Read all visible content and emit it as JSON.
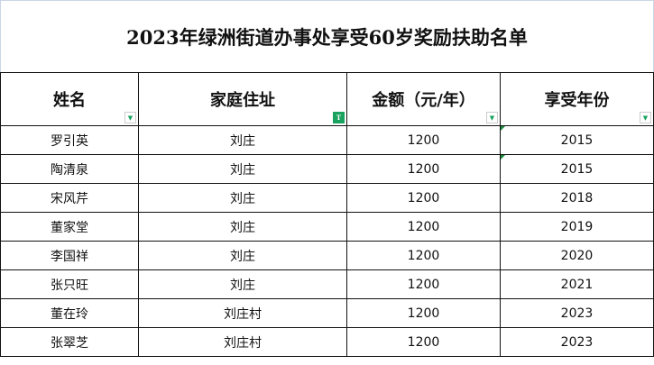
{
  "title": "2023年绿洲街道办事处享受60岁奖励扶助名单",
  "columns": [
    {
      "label": "姓名",
      "filter_icon": "dropdown-arrow-icon",
      "filtered": false
    },
    {
      "label": "家庭住址",
      "filter_icon": "filter-active-icon",
      "filtered": true
    },
    {
      "label": "金额（元/年）",
      "filter_icon": "dropdown-arrow-icon",
      "filtered": false
    },
    {
      "label": "享受年份",
      "filter_icon": "dropdown-arrow-icon",
      "filtered": false
    }
  ],
  "rows": [
    [
      "罗引英",
      "刘庄",
      "1200",
      "2015"
    ],
    [
      "陶清泉",
      "刘庄",
      "1200",
      "2015"
    ],
    [
      "宋风芹",
      "刘庄",
      "1200",
      "2018"
    ],
    [
      "董家堂",
      "刘庄",
      "1200",
      "2019"
    ],
    [
      "李国祥",
      "刘庄",
      "1200",
      "2020"
    ],
    [
      "张只旺",
      "刘庄",
      "1200",
      "2021"
    ],
    [
      "董在玲",
      "刘庄村",
      "1200",
      "2023"
    ],
    [
      "张翠芝",
      "刘庄村",
      "1200",
      "2023"
    ]
  ],
  "colors": {
    "filter_accent": "#1aa260",
    "border": "#111111"
  }
}
